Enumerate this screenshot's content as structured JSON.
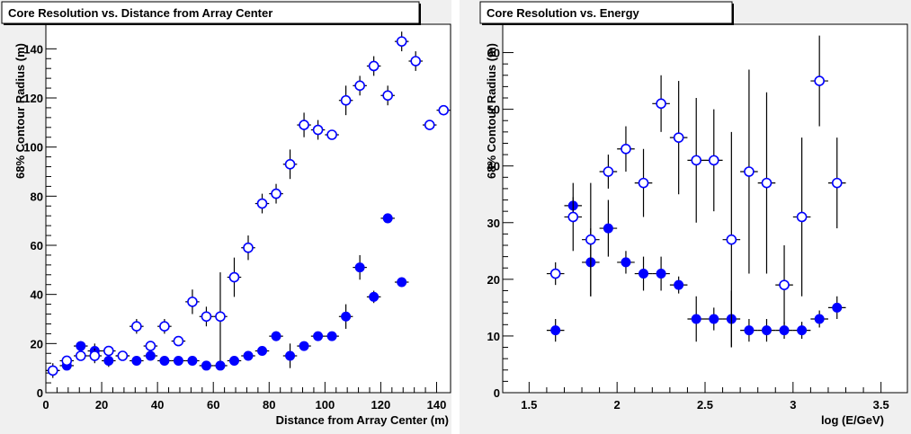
{
  "chart_data": [
    {
      "type": "scatter",
      "title": "Core Resolution vs. Distance from Array Center",
      "xlabel": "Distance from Array Center (m)",
      "ylabel": "68% Contour Radius (m)",
      "xlim": [
        0,
        145
      ],
      "ylim": [
        0,
        150
      ],
      "xticks": [
        0,
        20,
        40,
        60,
        80,
        100,
        120,
        140
      ],
      "xtick_labels": [
        "0",
        "20",
        "40",
        "60",
        "80",
        "100",
        "120",
        "140"
      ],
      "yticks": [
        0,
        20,
        40,
        60,
        80,
        100,
        120,
        140
      ],
      "ytick_labels": [
        "0",
        "20",
        "40",
        "60",
        "80",
        "100",
        "120",
        "140"
      ],
      "grid": false,
      "series": [
        {
          "marker": "filled-circle",
          "color": "#0000ff",
          "points": [
            {
              "x": 2.5,
              "y": 9,
              "yerr": 2
            },
            {
              "x": 7.5,
              "y": 11,
              "yerr": 1.5
            },
            {
              "x": 12.5,
              "y": 19,
              "yerr": 2
            },
            {
              "x": 17.5,
              "y": 17,
              "yerr": 3
            },
            {
              "x": 22.5,
              "y": 13,
              "yerr": 2.5
            },
            {
              "x": 27.5,
              "y": 15,
              "yerr": 2
            },
            {
              "x": 32.5,
              "y": 13,
              "yerr": 1.5
            },
            {
              "x": 37.5,
              "y": 15,
              "yerr": 1.5
            },
            {
              "x": 42.5,
              "y": 13,
              "yerr": 1.5
            },
            {
              "x": 47.5,
              "y": 13,
              "yerr": 1.5
            },
            {
              "x": 52.5,
              "y": 13,
              "yerr": 1.5
            },
            {
              "x": 57.5,
              "y": 11,
              "yerr": 1.5
            },
            {
              "x": 62.5,
              "y": 11,
              "yerr": 1.5
            },
            {
              "x": 67.5,
              "y": 13,
              "yerr": 1.5
            },
            {
              "x": 72.5,
              "y": 15,
              "yerr": 2
            },
            {
              "x": 77.5,
              "y": 17,
              "yerr": 1.5
            },
            {
              "x": 82.5,
              "y": 23,
              "yerr": 2
            },
            {
              "x": 87.5,
              "y": 15,
              "yerr": 5
            },
            {
              "x": 92.5,
              "y": 19,
              "yerr": 1.5
            },
            {
              "x": 97.5,
              "y": 23,
              "yerr": 1.5
            },
            {
              "x": 102.5,
              "y": 23,
              "yerr": 1.5
            },
            {
              "x": 107.5,
              "y": 31,
              "yerr": 5
            },
            {
              "x": 112.5,
              "y": 51,
              "yerr": 5
            },
            {
              "x": 117.5,
              "y": 39,
              "yerr": 2.5
            },
            {
              "x": 122.5,
              "y": 71,
              "yerr": 2
            },
            {
              "x": 127.5,
              "y": 45,
              "yerr": 2
            }
          ]
        },
        {
          "marker": "open-circle",
          "color": "#0000ff",
          "points": [
            {
              "x": 2.5,
              "y": 9,
              "yerr": 3
            },
            {
              "x": 7.5,
              "y": 13,
              "yerr": 2
            },
            {
              "x": 12.5,
              "y": 15,
              "yerr": 2
            },
            {
              "x": 17.5,
              "y": 15,
              "yerr": 3
            },
            {
              "x": 22.5,
              "y": 17,
              "yerr": 2
            },
            {
              "x": 27.5,
              "y": 15,
              "yerr": 2
            },
            {
              "x": 32.5,
              "y": 27,
              "yerr": 3
            },
            {
              "x": 37.5,
              "y": 19,
              "yerr": 2
            },
            {
              "x": 42.5,
              "y": 27,
              "yerr": 3
            },
            {
              "x": 47.5,
              "y": 21,
              "yerr": 2
            },
            {
              "x": 52.5,
              "y": 37,
              "yerr": 5
            },
            {
              "x": 57.5,
              "y": 31,
              "yerr": 4
            },
            {
              "x": 62.5,
              "y": 31,
              "yerr": 18
            },
            {
              "x": 67.5,
              "y": 47,
              "yerr": 8
            },
            {
              "x": 72.5,
              "y": 59,
              "yerr": 5
            },
            {
              "x": 77.5,
              "y": 77,
              "yerr": 4
            },
            {
              "x": 82.5,
              "y": 81,
              "yerr": 4
            },
            {
              "x": 87.5,
              "y": 93,
              "yerr": 6
            },
            {
              "x": 92.5,
              "y": 109,
              "yerr": 5
            },
            {
              "x": 97.5,
              "y": 107,
              "yerr": 4
            },
            {
              "x": 102.5,
              "y": 105,
              "yerr": 2
            },
            {
              "x": 107.5,
              "y": 119,
              "yerr": 6
            },
            {
              "x": 112.5,
              "y": 125,
              "yerr": 4
            },
            {
              "x": 117.5,
              "y": 133,
              "yerr": 4
            },
            {
              "x": 122.5,
              "y": 121,
              "yerr": 4
            },
            {
              "x": 127.5,
              "y": 143,
              "yerr": 4
            },
            {
              "x": 132.5,
              "y": 135,
              "yerr": 4
            },
            {
              "x": 137.5,
              "y": 109,
              "yerr": 2
            },
            {
              "x": 142.5,
              "y": 115,
              "yerr": 2
            }
          ]
        }
      ]
    },
    {
      "type": "scatter",
      "title": "Core Resolution vs. Energy",
      "xlabel": "log (E/GeV)",
      "ylabel": "68% Contour Radius (m)",
      "xlim": [
        1.35,
        3.65
      ],
      "ylim": [
        0,
        65
      ],
      "xticks": [
        1.5,
        2,
        2.5,
        3,
        3.5
      ],
      "xtick_labels": [
        "1.5",
        "2",
        "2.5",
        "3",
        "3.5"
      ],
      "yticks": [
        0,
        10,
        20,
        30,
        40,
        50,
        60
      ],
      "ytick_labels": [
        "0",
        "10",
        "20",
        "30",
        "40",
        "50",
        "60"
      ],
      "grid": false,
      "series": [
        {
          "marker": "filled-circle",
          "color": "#0000ff",
          "points": [
            {
              "x": 1.65,
              "y": 11,
              "yerr": 2
            },
            {
              "x": 1.75,
              "y": 33,
              "yerr": 1.5
            },
            {
              "x": 1.85,
              "y": 23,
              "yerr": 6
            },
            {
              "x": 1.95,
              "y": 29,
              "yerr": 5
            },
            {
              "x": 2.05,
              "y": 23,
              "yerr": 2
            },
            {
              "x": 2.15,
              "y": 21,
              "yerr": 3
            },
            {
              "x": 2.25,
              "y": 21,
              "yerr": 3
            },
            {
              "x": 2.35,
              "y": 19,
              "yerr": 1.5
            },
            {
              "x": 2.45,
              "y": 13,
              "yerr": 4
            },
            {
              "x": 2.55,
              "y": 13,
              "yerr": 2
            },
            {
              "x": 2.65,
              "y": 13,
              "yerr": 5
            },
            {
              "x": 2.75,
              "y": 11,
              "yerr": 2
            },
            {
              "x": 2.85,
              "y": 11,
              "yerr": 2
            },
            {
              "x": 2.95,
              "y": 11,
              "yerr": 1.5
            },
            {
              "x": 3.05,
              "y": 11,
              "yerr": 1.5
            },
            {
              "x": 3.15,
              "y": 13,
              "yerr": 1.5
            },
            {
              "x": 3.25,
              "y": 15,
              "yerr": 2
            }
          ]
        },
        {
          "marker": "open-circle",
          "color": "#0000ff",
          "points": [
            {
              "x": 1.65,
              "y": 21,
              "yerr": 2
            },
            {
              "x": 1.75,
              "y": 31,
              "yerr": 6
            },
            {
              "x": 1.85,
              "y": 27,
              "yerr": 10
            },
            {
              "x": 1.95,
              "y": 39,
              "yerr": 3
            },
            {
              "x": 2.05,
              "y": 43,
              "yerr": 4
            },
            {
              "x": 2.15,
              "y": 37,
              "yerr": 6
            },
            {
              "x": 2.25,
              "y": 51,
              "yerr": 5
            },
            {
              "x": 2.35,
              "y": 45,
              "yerr": 10
            },
            {
              "x": 2.45,
              "y": 41,
              "yerr": 11
            },
            {
              "x": 2.55,
              "y": 41,
              "yerr": 9
            },
            {
              "x": 2.65,
              "y": 27,
              "yerr": 19
            },
            {
              "x": 2.75,
              "y": 39,
              "yerr": 18
            },
            {
              "x": 2.85,
              "y": 37,
              "yerr": 16
            },
            {
              "x": 2.95,
              "y": 19,
              "yerr": 7
            },
            {
              "x": 3.05,
              "y": 31,
              "yerr": 14
            },
            {
              "x": 3.15,
              "y": 55,
              "yerr": 8
            },
            {
              "x": 3.25,
              "y": 37,
              "yerr": 8
            }
          ]
        }
      ]
    }
  ]
}
